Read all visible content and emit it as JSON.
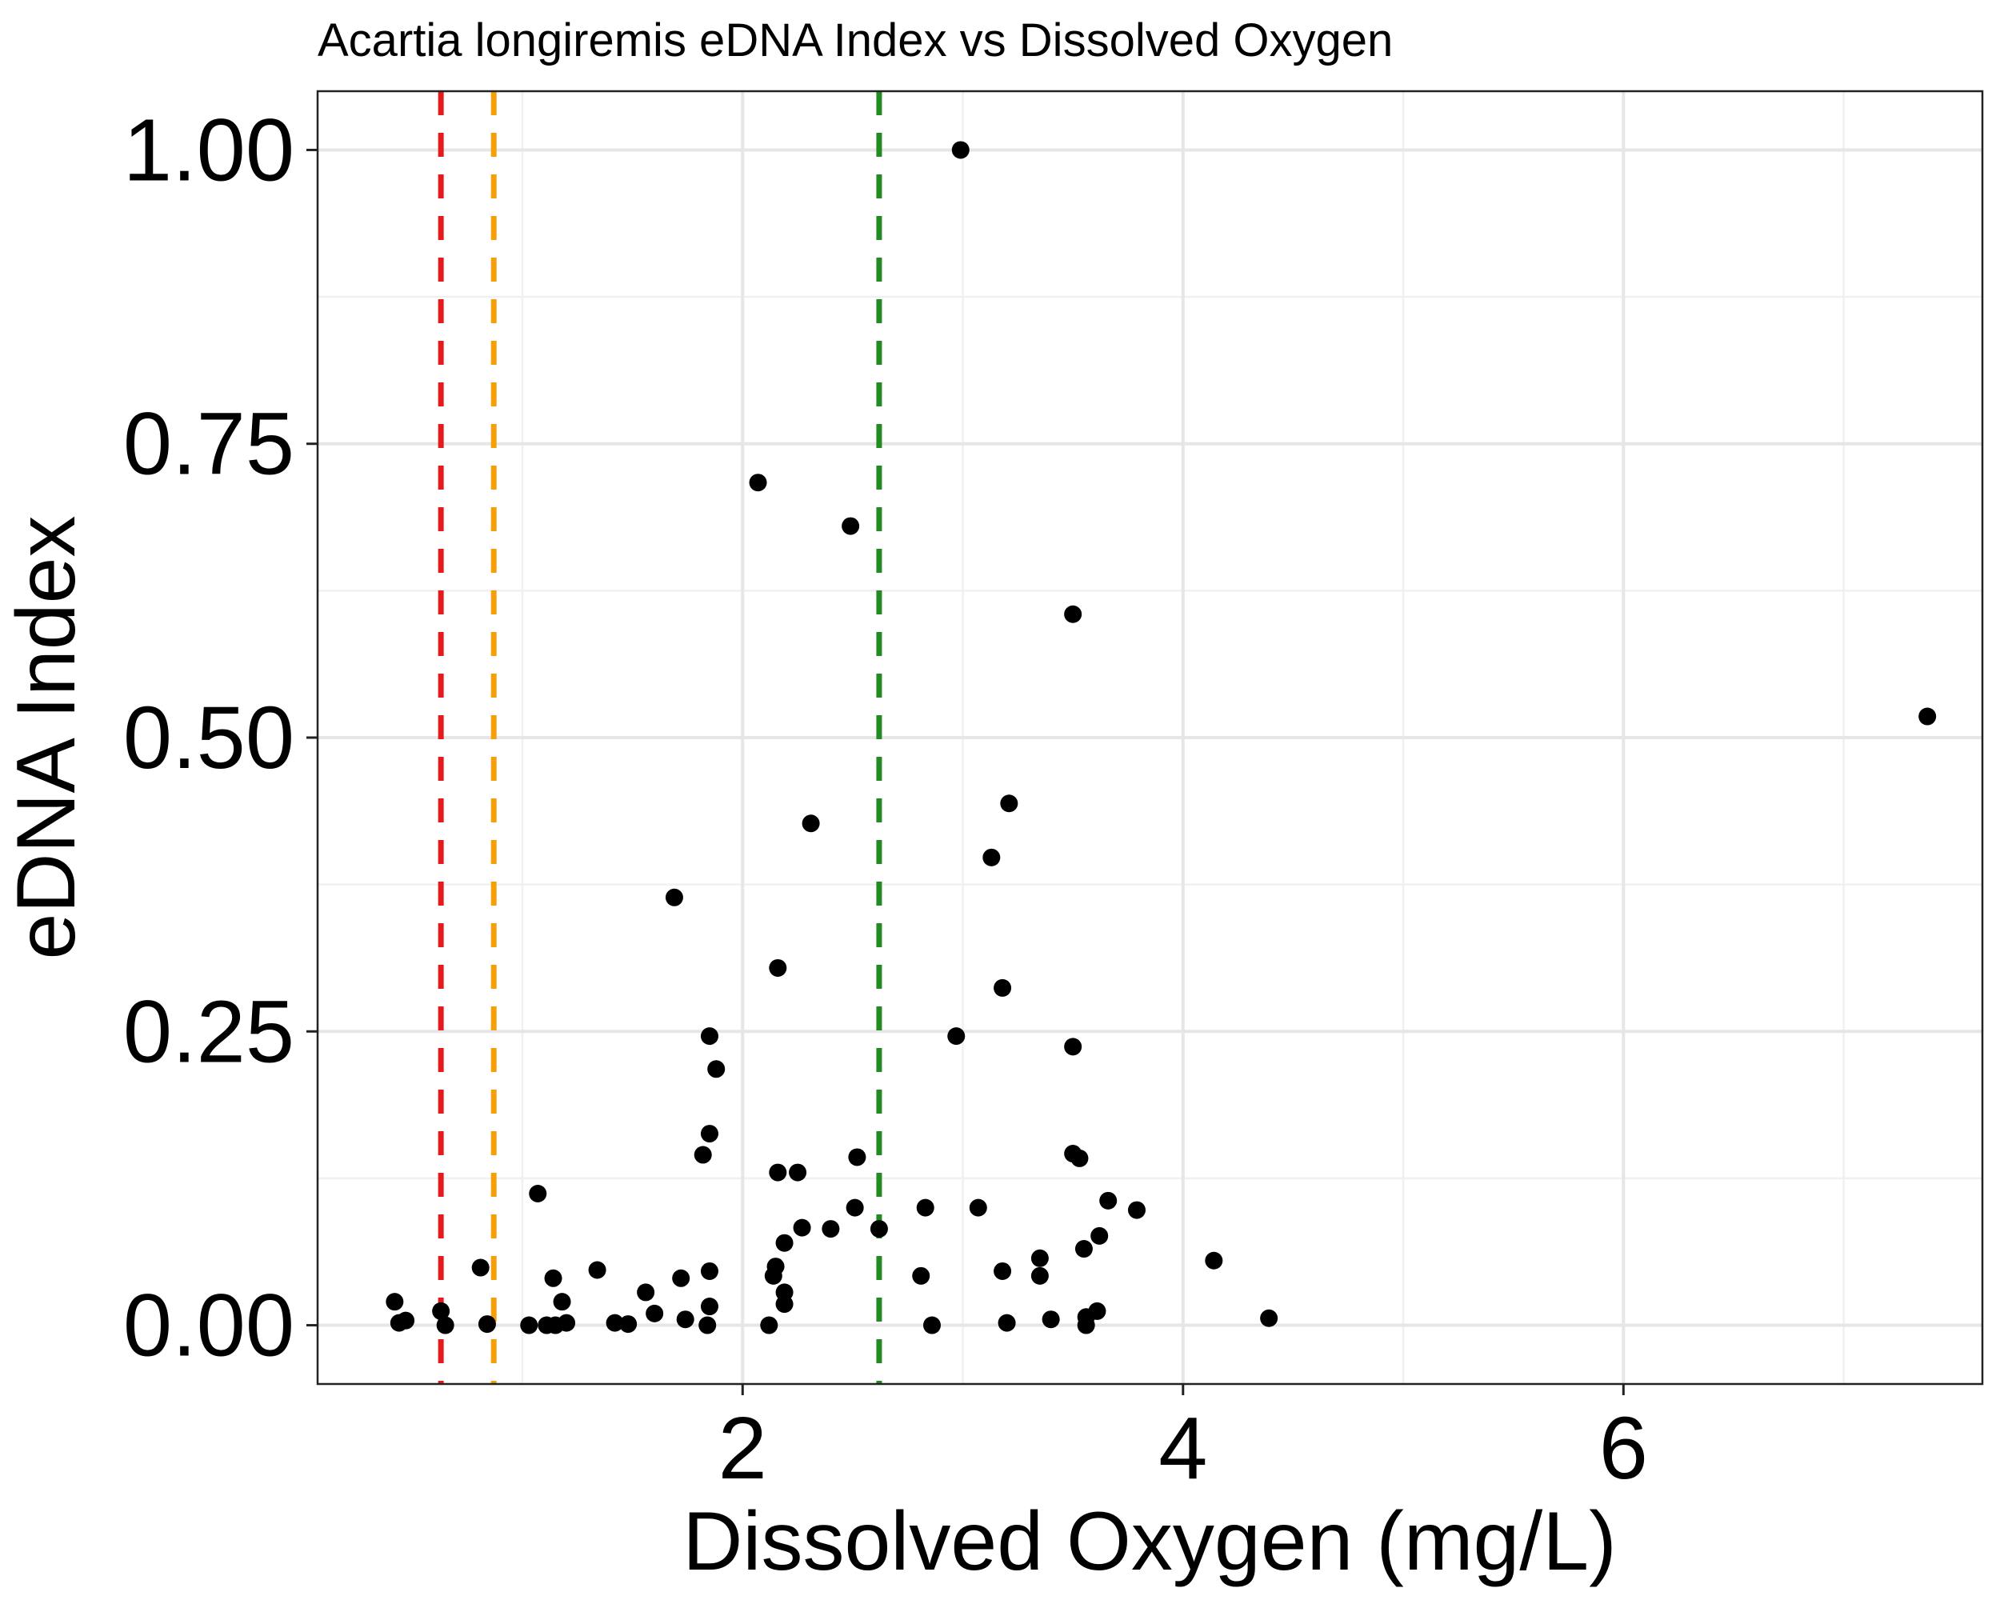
{
  "chart_data": {
    "type": "scatter",
    "title": "Acartia longiremis eDNA Index vs Dissolved Oxygen",
    "xlabel": "Dissolved Oxygen (mg/L)",
    "ylabel": "eDNA Index",
    "xlim": [
      0.07,
      7.63
    ],
    "ylim": [
      -0.05,
      1.05
    ],
    "x_ticks": [
      2,
      4,
      6
    ],
    "x_tick_labels": [
      "2",
      "4",
      "6"
    ],
    "x_minor_ticks": [
      1,
      3,
      5,
      7
    ],
    "y_ticks": [
      0,
      0.25,
      0.5,
      0.75,
      1.0
    ],
    "y_tick_labels": [
      "0.00",
      "0.25",
      "0.50",
      "0.75",
      "1.00"
    ],
    "y_minor_ticks": [
      0.125,
      0.375,
      0.625,
      0.875
    ],
    "grid": true,
    "legend": "none",
    "point_color": "#000000",
    "reference_lines": [
      {
        "x": 0.63,
        "color": "#e41a1c",
        "style": "dashed"
      },
      {
        "x": 0.87,
        "color": "#f5a00a",
        "style": "dashed"
      },
      {
        "x": 2.62,
        "color": "#228b22",
        "style": "dashed"
      }
    ],
    "points": [
      {
        "x": 0.42,
        "y": 0.02
      },
      {
        "x": 0.44,
        "y": 0.002
      },
      {
        "x": 0.47,
        "y": 0.004
      },
      {
        "x": 0.63,
        "y": 0.012
      },
      {
        "x": 0.65,
        "y": 0.0
      },
      {
        "x": 0.81,
        "y": 0.049
      },
      {
        "x": 0.84,
        "y": 0.001
      },
      {
        "x": 1.03,
        "y": 0.0
      },
      {
        "x": 1.07,
        "y": 0.112
      },
      {
        "x": 1.11,
        "y": 0.0
      },
      {
        "x": 1.14,
        "y": 0.04
      },
      {
        "x": 1.15,
        "y": 0.0
      },
      {
        "x": 1.18,
        "y": 0.02
      },
      {
        "x": 1.2,
        "y": 0.002
      },
      {
        "x": 1.34,
        "y": 0.047
      },
      {
        "x": 1.42,
        "y": 0.002
      },
      {
        "x": 1.48,
        "y": 0.001
      },
      {
        "x": 1.56,
        "y": 0.028
      },
      {
        "x": 1.6,
        "y": 0.01
      },
      {
        "x": 1.69,
        "y": 0.364
      },
      {
        "x": 1.72,
        "y": 0.04
      },
      {
        "x": 1.74,
        "y": 0.005
      },
      {
        "x": 1.82,
        "y": 0.145
      },
      {
        "x": 1.84,
        "y": 0.0
      },
      {
        "x": 1.85,
        "y": 0.016
      },
      {
        "x": 1.85,
        "y": 0.046
      },
      {
        "x": 1.85,
        "y": 0.246
      },
      {
        "x": 1.85,
        "y": 0.163
      },
      {
        "x": 1.88,
        "y": 0.218
      },
      {
        "x": 2.07,
        "y": 0.717
      },
      {
        "x": 2.12,
        "y": 0.0
      },
      {
        "x": 2.14,
        "y": 0.042
      },
      {
        "x": 2.15,
        "y": 0.05
      },
      {
        "x": 2.16,
        "y": 0.304
      },
      {
        "x": 2.16,
        "y": 0.13
      },
      {
        "x": 2.19,
        "y": 0.028
      },
      {
        "x": 2.19,
        "y": 0.018
      },
      {
        "x": 2.19,
        "y": 0.07
      },
      {
        "x": 2.25,
        "y": 0.13
      },
      {
        "x": 2.27,
        "y": 0.083
      },
      {
        "x": 2.31,
        "y": 0.427
      },
      {
        "x": 2.4,
        "y": 0.082
      },
      {
        "x": 2.49,
        "y": 0.68
      },
      {
        "x": 2.51,
        "y": 0.1
      },
      {
        "x": 2.52,
        "y": 0.143
      },
      {
        "x": 2.62,
        "y": 0.082
      },
      {
        "x": 2.81,
        "y": 0.042
      },
      {
        "x": 2.83,
        "y": 0.1
      },
      {
        "x": 2.86,
        "y": 0.0
      },
      {
        "x": 2.97,
        "y": 0.246
      },
      {
        "x": 2.99,
        "y": 1.0
      },
      {
        "x": 3.07,
        "y": 0.1
      },
      {
        "x": 3.13,
        "y": 0.398
      },
      {
        "x": 3.18,
        "y": 0.287
      },
      {
        "x": 3.18,
        "y": 0.046
      },
      {
        "x": 3.2,
        "y": 0.002
      },
      {
        "x": 3.21,
        "y": 0.444
      },
      {
        "x": 3.35,
        "y": 0.057
      },
      {
        "x": 3.35,
        "y": 0.042
      },
      {
        "x": 3.4,
        "y": 0.005
      },
      {
        "x": 3.5,
        "y": 0.605
      },
      {
        "x": 3.5,
        "y": 0.237
      },
      {
        "x": 3.5,
        "y": 0.146
      },
      {
        "x": 3.53,
        "y": 0.142
      },
      {
        "x": 3.55,
        "y": 0.065
      },
      {
        "x": 3.56,
        "y": 0.007
      },
      {
        "x": 3.56,
        "y": 0.0
      },
      {
        "x": 3.61,
        "y": 0.012
      },
      {
        "x": 3.62,
        "y": 0.076
      },
      {
        "x": 3.66,
        "y": 0.106
      },
      {
        "x": 3.79,
        "y": 0.098
      },
      {
        "x": 4.14,
        "y": 0.055
      },
      {
        "x": 4.39,
        "y": 0.006
      },
      {
        "x": 7.38,
        "y": 0.518
      }
    ]
  }
}
